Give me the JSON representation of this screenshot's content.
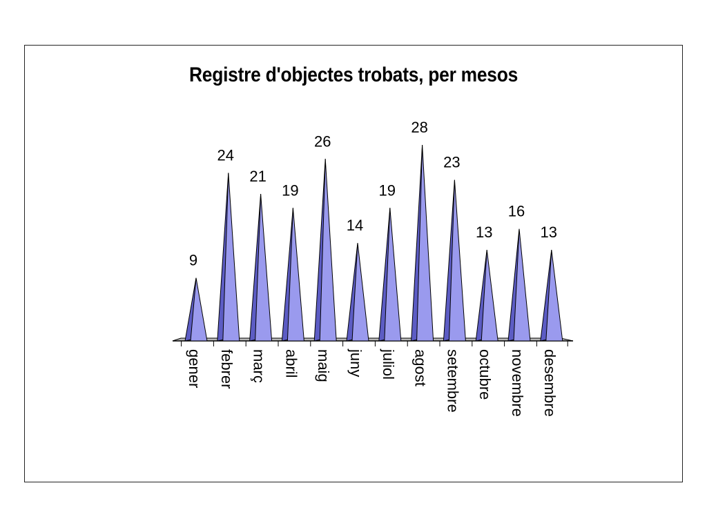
{
  "chart_data": {
    "type": "bar",
    "shape": "3d-cone",
    "title": "Registre d'objectes trobats, per mesos",
    "xlabel": "",
    "ylabel": "",
    "categories": [
      "gener",
      "febrer",
      "març",
      "abril",
      "maig",
      "juny",
      "juliol",
      "agost",
      "setembre",
      "octubre",
      "novembre",
      "desembre"
    ],
    "values": [
      9,
      24,
      21,
      19,
      26,
      14,
      19,
      28,
      23,
      13,
      16,
      13
    ],
    "ylim": [
      0,
      28
    ],
    "grid": false,
    "legend": "none",
    "data_labels": true,
    "colors": {
      "cone_front": "#9a9aee",
      "cone_side": "#5c5cc4",
      "outline": "#000000",
      "floor": "#b8b8b8"
    }
  }
}
